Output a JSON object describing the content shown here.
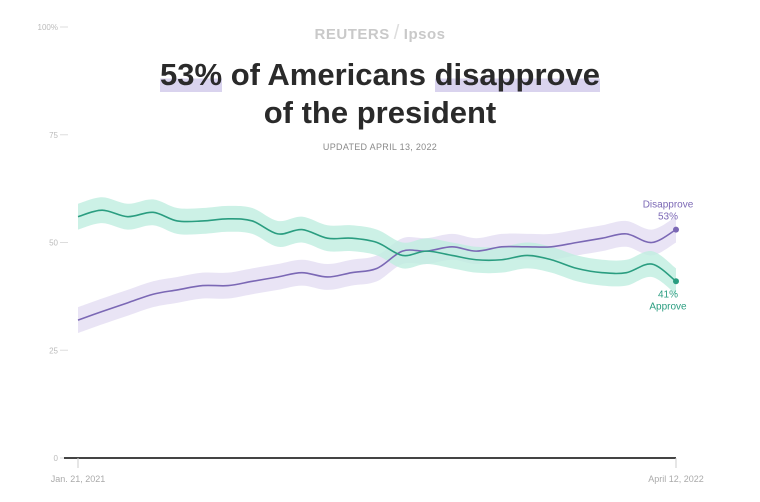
{
  "brand": {
    "left": "REUTERS",
    "sep": "/",
    "right": "Ipsos"
  },
  "headline": {
    "part1": "53%",
    "part2": " of Americans ",
    "part3": "disapprove",
    "line2": "of the president"
  },
  "updated": "UPDATED APRIL 13, 2022",
  "colors": {
    "approve": "#2a9d80",
    "approve_band": "#bfeee0",
    "disapprove": "#7b68b5",
    "disapprove_band": "#e3ddf2"
  },
  "chart_data": {
    "type": "line",
    "title": "53% of Americans disapprove of the president",
    "ylim": [
      0,
      100
    ],
    "yticks": [
      0,
      25,
      50,
      75,
      100
    ],
    "ytick_labels": [
      "0",
      "25",
      "50",
      "75",
      "100%"
    ],
    "xlim_days": [
      0,
      446
    ],
    "xtick_labels": [
      "Jan. 21, 2021",
      "April 12, 2022"
    ],
    "band_halfwidth": 3,
    "x_days": [
      0,
      18,
      37,
      56,
      74,
      93,
      112,
      130,
      149,
      167,
      186,
      204,
      223,
      242,
      260,
      279,
      297,
      316,
      335,
      353,
      372,
      391,
      409,
      428,
      446
    ],
    "series": [
      {
        "name": "Disapprove",
        "final_label": "53%",
        "values": [
          32,
          34,
          36,
          38,
          39,
          40,
          40,
          41,
          42,
          43,
          42,
          43,
          44,
          48,
          48,
          49,
          48,
          49,
          49,
          49,
          50,
          51,
          52,
          50,
          53
        ]
      },
      {
        "name": "Approve",
        "final_label": "41%",
        "values": [
          56,
          57.5,
          56,
          57,
          55,
          55,
          55.5,
          55,
          52,
          53,
          51,
          51,
          50,
          47,
          48,
          47,
          46,
          46,
          47,
          46,
          44,
          43,
          43,
          45,
          41
        ]
      }
    ]
  }
}
